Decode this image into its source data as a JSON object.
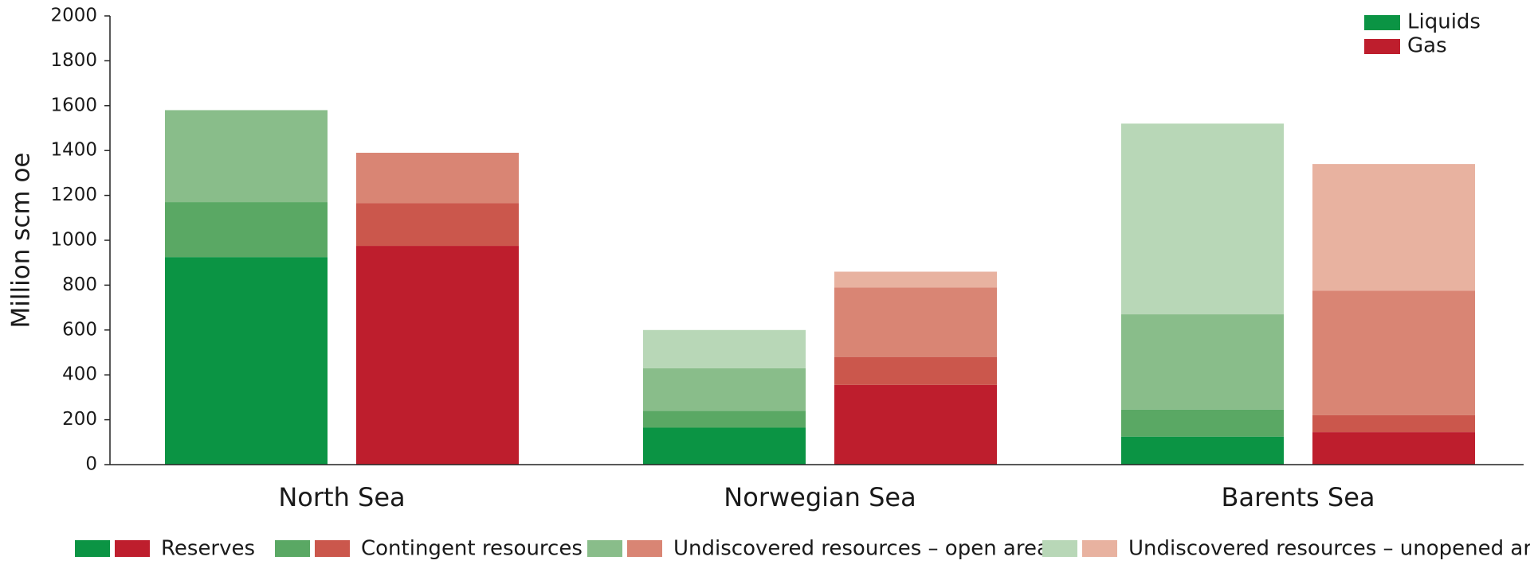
{
  "chart_data": {
    "type": "bar",
    "ylabel": "Million scm oe",
    "categories": [
      "North Sea",
      "Norwegian Sea",
      "Barents Sea"
    ],
    "segments": [
      "Reserves",
      "Contingent resources",
      "Undiscovered resources – open areas",
      "Undiscovered resources – unopened areas"
    ],
    "series": [
      {
        "name": "Liquids",
        "color": "#0b9444",
        "colors": [
          "#0b9444",
          "#5aa864",
          "#89bd8a",
          "#b8d7b7"
        ],
        "values": [
          [
            925,
            245,
            410,
            0
          ],
          [
            165,
            75,
            190,
            170
          ],
          [
            125,
            120,
            425,
            850
          ]
        ]
      },
      {
        "name": "Gas",
        "color": "#be1e2d",
        "colors": [
          "#be1e2d",
          "#cb574c",
          "#d98574",
          "#e8b2a0"
        ],
        "values": [
          [
            975,
            190,
            225,
            0
          ],
          [
            355,
            125,
            310,
            70
          ],
          [
            145,
            75,
            555,
            565
          ]
        ]
      }
    ],
    "ylim": [
      0,
      2000
    ],
    "yticks": [
      0,
      200,
      400,
      600,
      800,
      1000,
      1200,
      1400,
      1600,
      1800,
      2000
    ],
    "legend": "upper right"
  }
}
